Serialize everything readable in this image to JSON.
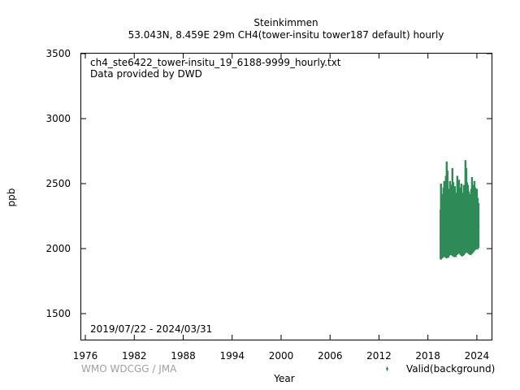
{
  "chart_data": {
    "type": "scatter",
    "title": "Steinkimmen",
    "subtitle": "53.043N, 8.459E 29m    CH4(tower-insitu tower187 default) hourly",
    "file_label": "ch4_ste6422_tower-insitu_19_6188-9999_hourly.txt",
    "provider": "Data provided by DWD",
    "date_range": "2019/07/22 - 2024/03/31",
    "xlabel": "Year",
    "ylabel": "ppb",
    "credit": "WMO WDCGG / JMA",
    "xlim": [
      1975.5,
      2025.8
    ],
    "ylim": [
      1300,
      3500
    ],
    "xticks": [
      "1976",
      "1982",
      "1988",
      "1994",
      "2000",
      "2006",
      "2012",
      "2018",
      "2024"
    ],
    "yticks": [
      "1500",
      "2000",
      "2500",
      "3000",
      "3500"
    ],
    "grid": false,
    "legend_position": "bottom-right",
    "series": [
      {
        "name": "Valid(background)",
        "color": "#2e8b57",
        "x": [
          2019.55,
          2019.6,
          2019.7,
          2019.8,
          2019.9,
          2020.0,
          2020.1,
          2020.2,
          2020.3,
          2020.4,
          2020.5,
          2020.6,
          2020.7,
          2020.8,
          2020.9,
          2021.0,
          2021.1,
          2021.2,
          2021.3,
          2021.4,
          2021.5,
          2021.6,
          2021.7,
          2021.8,
          2021.9,
          2022.0,
          2022.1,
          2022.2,
          2022.3,
          2022.4,
          2022.5,
          2022.6,
          2022.7,
          2022.8,
          2022.9,
          2023.0,
          2023.1,
          2023.2,
          2023.3,
          2023.4,
          2023.5,
          2023.6,
          2023.7,
          2023.8,
          2023.9,
          2024.0,
          2024.1,
          2024.2
        ],
        "y_min": [
          1920,
          1915,
          1925,
          1930,
          1935,
          1940,
          1935,
          1930,
          1925,
          1935,
          1930,
          1945,
          1950,
          1955,
          1950,
          1945,
          1940,
          1935,
          1940,
          1935,
          1950,
          1955,
          1960,
          1965,
          1960,
          1950,
          1945,
          1940,
          1945,
          1950,
          1960,
          1965,
          1970,
          1975,
          1965,
          1960,
          1955,
          1950,
          1955,
          1960,
          1970,
          1975,
          1985,
          1990,
          1995,
          2000,
          1995,
          2005
        ],
        "y_max": [
          2300,
          2500,
          2350,
          2420,
          2470,
          2520,
          2440,
          2560,
          2670,
          2600,
          2460,
          2380,
          2520,
          2490,
          2430,
          2620,
          2510,
          2410,
          2480,
          2430,
          2410,
          2560,
          2490,
          2530,
          2470,
          2420,
          2500,
          2430,
          2410,
          2490,
          2440,
          2680,
          2620,
          2510,
          2490,
          2440,
          2390,
          2420,
          2460,
          2550,
          2440,
          2490,
          2520,
          2470,
          2410,
          2460,
          2390,
          2350
        ],
        "y_median": [
          2080,
          2090,
          2100,
          2120,
          2130,
          2140,
          2110,
          2100,
          2090,
          2110,
          2100,
          2120,
          2140,
          2150,
          2130,
          2140,
          2120,
          2100,
          2110,
          2100,
          2120,
          2140,
          2150,
          2160,
          2150,
          2140,
          2130,
          2120,
          2110,
          2120,
          2130,
          2150,
          2160,
          2170,
          2160,
          2150,
          2140,
          2130,
          2140,
          2150,
          2160,
          2170,
          2180,
          2190,
          2200,
          2190,
          2180,
          2170
        ]
      }
    ]
  }
}
